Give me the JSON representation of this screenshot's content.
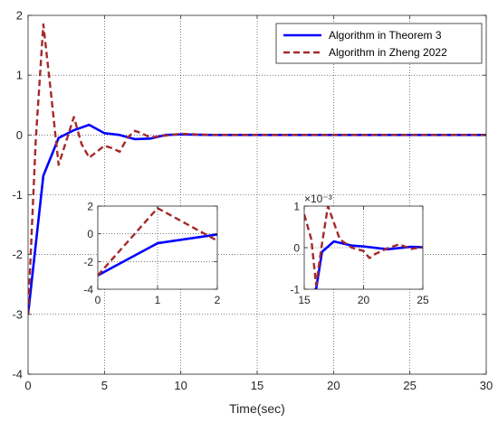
{
  "chart_data": [
    {
      "id": "main",
      "type": "line",
      "xlabel": "Time(sec)",
      "ylabel": "",
      "xlim": [
        0,
        30
      ],
      "ylim": [
        -4,
        2
      ],
      "xticks": [
        0,
        5,
        10,
        15,
        20,
        25,
        30
      ],
      "yticks": [
        -4,
        -3,
        -2,
        -1,
        0,
        1,
        2
      ],
      "grid": true,
      "legend": "top-right",
      "series": [
        {
          "name": "Algorithm in Theorem 3",
          "color": "#0000ff",
          "style": "solid",
          "x": [
            0,
            1,
            2,
            3,
            4,
            5,
            6,
            7,
            8,
            9,
            10,
            12,
            15,
            20,
            25,
            30
          ],
          "y": [
            -3,
            -0.68,
            -0.05,
            0.08,
            0.17,
            0.03,
            0.0,
            -0.07,
            -0.06,
            0.0,
            0.01,
            0.0,
            0.0,
            0.0,
            0.0,
            0.0
          ]
        },
        {
          "name": "Algorithm in Zheng 2022",
          "color": "#a52a2a",
          "style": "dashed",
          "x": [
            0,
            0.5,
            1,
            1.5,
            2,
            2.5,
            3,
            3.5,
            4,
            4.5,
            5,
            5.5,
            6,
            6.5,
            7,
            7.5,
            8,
            9,
            10,
            12,
            15,
            20,
            25,
            30
          ],
          "y": [
            -3,
            -0.1,
            1.85,
            0.7,
            -0.5,
            -0.1,
            0.3,
            -0.15,
            -0.38,
            -0.28,
            -0.18,
            -0.22,
            -0.28,
            -0.05,
            0.07,
            0.02,
            -0.04,
            -0.01,
            0.02,
            0.0,
            0.0,
            0.0,
            0.0,
            0.0
          ]
        }
      ]
    },
    {
      "id": "inset-left",
      "type": "line",
      "xlim": [
        0,
        2
      ],
      "ylim": [
        -4,
        2
      ],
      "xticks": [
        0,
        1,
        2
      ],
      "yticks": [
        -4,
        -2,
        0,
        2
      ],
      "grid": true,
      "series": [
        {
          "name": "Algorithm in Theorem 3",
          "color": "#0000ff",
          "style": "solid",
          "x": [
            0,
            1,
            2
          ],
          "y": [
            -3,
            -0.68,
            -0.05
          ]
        },
        {
          "name": "Algorithm in Zheng 2022",
          "color": "#a52a2a",
          "style": "dashed",
          "x": [
            0,
            1,
            2
          ],
          "y": [
            -3,
            1.85,
            -0.5
          ]
        }
      ]
    },
    {
      "id": "inset-right",
      "type": "line",
      "xlim": [
        15,
        25
      ],
      "ylim": [
        -0.001,
        0.001
      ],
      "xticks": [
        15,
        20,
        25
      ],
      "yticks": [
        -1,
        0,
        1
      ],
      "ytick_scale_label": "×10⁻³",
      "grid": true,
      "series": [
        {
          "name": "Algorithm in Theorem 3",
          "color": "#0000ff",
          "style": "solid",
          "x": [
            15,
            16,
            16.5,
            17.5,
            19,
            20,
            22,
            24,
            25
          ],
          "y": [
            -0.0011,
            -0.001,
            -0.0001,
            0.00015,
            5e-05,
            3e-05,
            -4e-05,
            2e-05,
            1e-05
          ]
        },
        {
          "name": "Algorithm in Zheng 2022",
          "color": "#a52a2a",
          "style": "dashed",
          "x": [
            15,
            15.6,
            16,
            16.5,
            17,
            18,
            19,
            20,
            20.5,
            21,
            22,
            23,
            24,
            25
          ],
          "y": [
            0.0008,
            0.0002,
            -0.0009,
            0.0001,
            0.001,
            0.0002,
            0.0,
            -8e-05,
            -0.00025,
            -0.00015,
            -2e-05,
            8e-05,
            -3e-05,
            1e-05
          ]
        }
      ]
    }
  ]
}
